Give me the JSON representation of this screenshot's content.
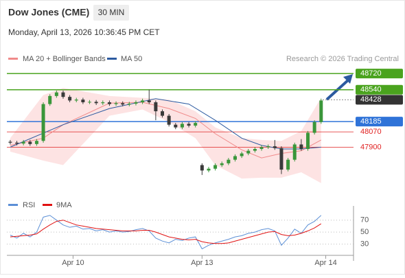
{
  "chart_data": {
    "type": "candlestick",
    "title": "Dow Jones (CME)",
    "interval": "30 MIN",
    "datetime": "Monday, April 13, 2026 10:36:45 PM CET",
    "source": "Research © 2026 Trading Central",
    "up_color": "#3a963a",
    "down_color": "#3a3a3a",
    "open": [
      47960,
      47950,
      47940,
      47960,
      47935,
      47970,
      48380,
      48470,
      48510,
      48460,
      48420,
      48430,
      48400,
      48405,
      48390,
      48400,
      48380,
      48390,
      48375,
      48385,
      48400,
      48420,
      48400,
      48300,
      48250,
      48150,
      48120,
      48160,
      48140,
      47700,
      47640,
      47660,
      47700,
      47720,
      47760,
      47800,
      47830,
      47860,
      47880,
      47900,
      47910,
      47890,
      47650,
      47760,
      47930,
      47880,
      48060,
      48180
    ],
    "high": [
      47980,
      47970,
      47980,
      47980,
      47990,
      48400,
      48490,
      48530,
      48530,
      48480,
      48450,
      48450,
      48425,
      48425,
      48420,
      48420,
      48410,
      48410,
      48405,
      48420,
      48440,
      48540,
      48420,
      48320,
      48270,
      48170,
      48180,
      48180,
      48190,
      47720,
      47680,
      47720,
      47740,
      47780,
      47820,
      47850,
      47880,
      47900,
      47920,
      47930,
      47980,
      47910,
      47780,
      47950,
      47990,
      48080,
      48200,
      48440
    ],
    "low": [
      47930,
      47920,
      47920,
      47915,
      47915,
      47950,
      48360,
      48450,
      48440,
      48400,
      48400,
      48380,
      48380,
      48370,
      48370,
      48360,
      48360,
      48355,
      48355,
      48365,
      48380,
      48380,
      48200,
      48230,
      48130,
      48100,
      48100,
      48120,
      48120,
      47590,
      47620,
      47640,
      47680,
      47700,
      47740,
      47780,
      47810,
      47840,
      47860,
      47880,
      47870,
      47600,
      47630,
      47740,
      47860,
      47860,
      48040,
      48160
    ],
    "close": [
      47950,
      47940,
      47960,
      47935,
      47970,
      48380,
      48470,
      48510,
      48460,
      48420,
      48430,
      48400,
      48405,
      48390,
      48400,
      48380,
      48390,
      48375,
      48385,
      48400,
      48420,
      48400,
      48300,
      48250,
      48150,
      48120,
      48160,
      48140,
      48170,
      47640,
      47660,
      47700,
      47720,
      47760,
      47800,
      47830,
      47860,
      47880,
      47900,
      47910,
      47890,
      47650,
      47760,
      47930,
      47880,
      48060,
      48180,
      48420
    ],
    "ylim": [
      47490,
      48790
    ],
    "xlim": [
      -0.3,
      51.9
    ],
    "xticks": [
      {
        "value": 9.5,
        "label": "Apr 10"
      },
      {
        "value": 29,
        "label": "Apr 13"
      },
      {
        "value": 47.7,
        "label": "Apr 14"
      }
    ],
    "bollinger": {
      "name": "MA 20 + Bollinger Bands",
      "color": "#f08a8a",
      "band_color": "#fde3e3",
      "x": [
        0,
        5,
        8,
        15,
        20,
        24,
        28,
        31,
        35,
        38,
        41,
        44,
        47
      ],
      "mid": [
        47920,
        48000,
        48150,
        48390,
        48400,
        48330,
        48220,
        48050,
        47870,
        47780,
        47830,
        47860,
        47980
      ],
      "upper": [
        48000,
        48480,
        48560,
        48470,
        48450,
        48430,
        48300,
        48120,
        48000,
        47980,
        47970,
        48080,
        48450
      ],
      "lower": [
        47850,
        47750,
        47700,
        48250,
        48320,
        48180,
        48000,
        47700,
        47550,
        47560,
        47560,
        47620,
        47500
      ]
    },
    "ma50": {
      "name": "MA 50",
      "color": "#2c5aa0",
      "x": [
        0,
        8,
        15,
        22,
        27,
        31,
        35,
        38,
        41,
        44,
        47
      ],
      "values": [
        47900,
        48150,
        48330,
        48440,
        48380,
        48200,
        48000,
        47920,
        47880,
        47880,
        47900
      ]
    },
    "levels": [
      {
        "value": 48720,
        "color": "#4aa31e",
        "style": "box"
      },
      {
        "value": 48540,
        "color": "#4aa31e",
        "style": "box"
      },
      {
        "value": 48428,
        "color": "#333333",
        "style": "dotted"
      },
      {
        "value": 48185,
        "color": "#2f73d8",
        "style": "box"
      },
      {
        "value": 48070,
        "color": "#e02020",
        "style": "text"
      },
      {
        "value": 47900,
        "color": "#e02020",
        "style": "text"
      }
    ],
    "rsi": {
      "ylim": [
        10,
        80
      ],
      "yticks": [
        30,
        50,
        70
      ],
      "series": [
        {
          "name": "RSI",
          "color": "#5b8fd6",
          "values": [
            45,
            40,
            48,
            42,
            50,
            75,
            78,
            70,
            62,
            58,
            60,
            55,
            56,
            52,
            54,
            50,
            52,
            50,
            51,
            54,
            56,
            52,
            40,
            35,
            32,
            38,
            36,
            40,
            42,
            22,
            28,
            32,
            35,
            38,
            42,
            44,
            48,
            50,
            54,
            56,
            52,
            28,
            40,
            55,
            48,
            62,
            68,
            78
          ]
        },
        {
          "name": "9MA",
          "color": "#e01010",
          "values": [
            42,
            43,
            44,
            45,
            47,
            55,
            62,
            68,
            70,
            66,
            62,
            60,
            58,
            56,
            55,
            54,
            53,
            52,
            52,
            52,
            53,
            53,
            50,
            46,
            42,
            40,
            38,
            37,
            38,
            34,
            32,
            31,
            31,
            32,
            35,
            38,
            41,
            44,
            47,
            50,
            51,
            46,
            44,
            45,
            48,
            52,
            57,
            64
          ]
        }
      ]
    }
  }
}
